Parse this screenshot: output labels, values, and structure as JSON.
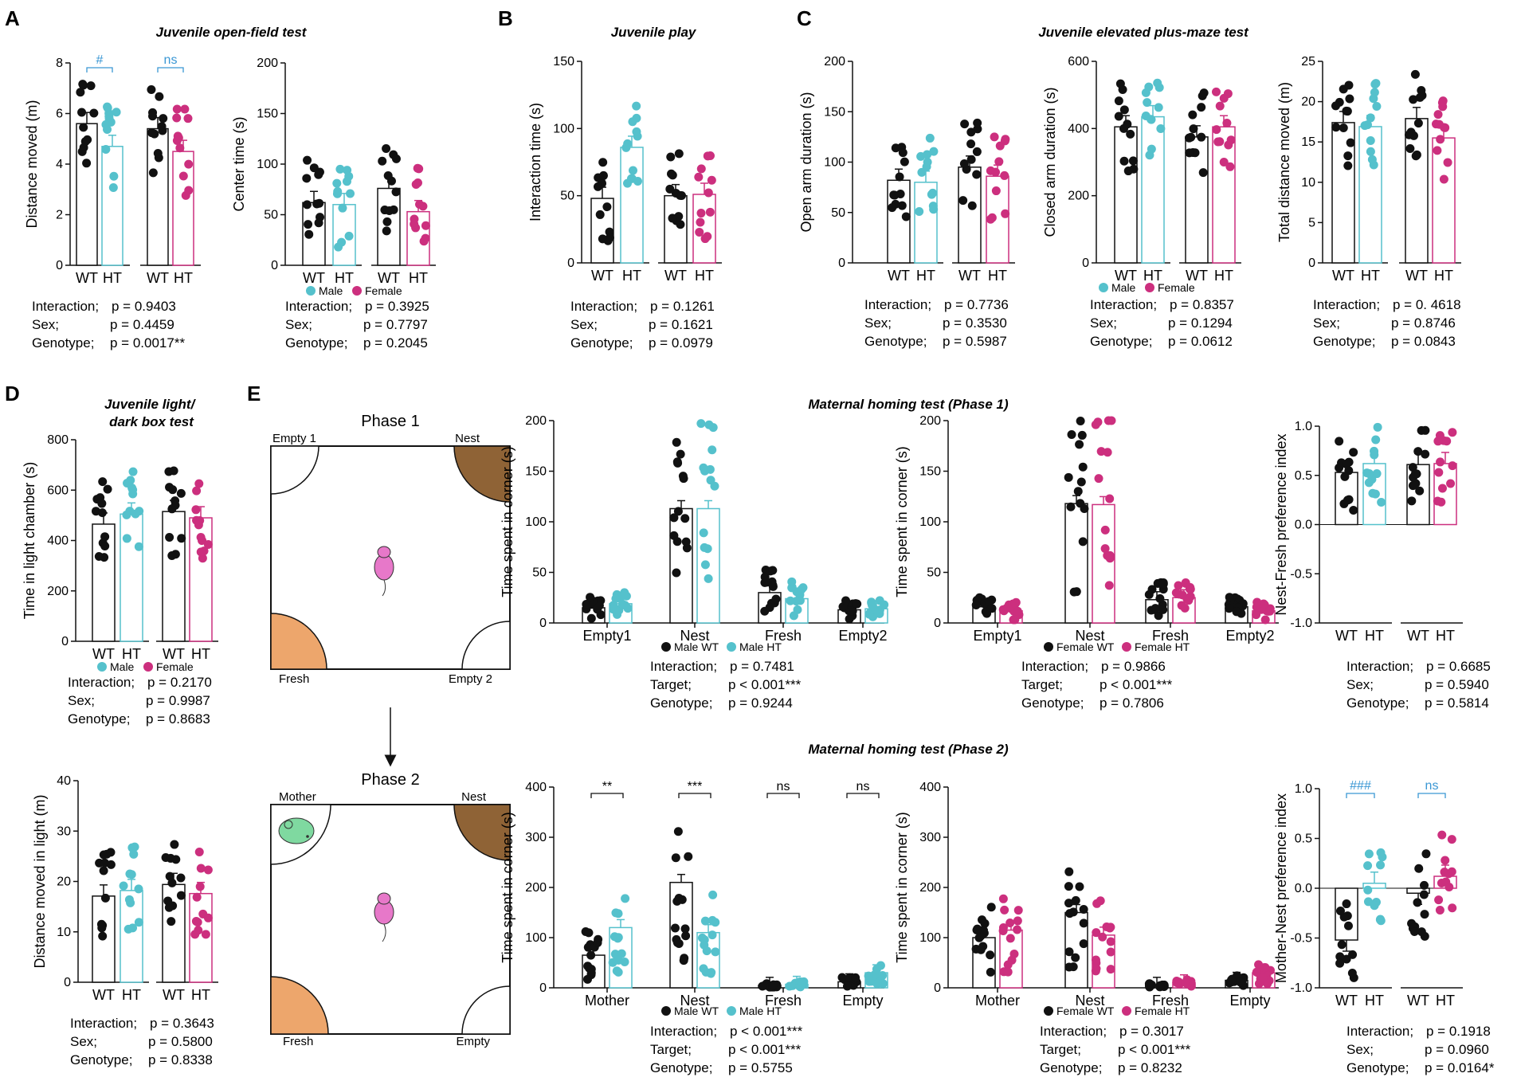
{
  "colors": {
    "wt": "#111111",
    "male_ht": "#55c1cc",
    "female_ht": "#cc2f7e",
    "sig_line": "#3a97d4",
    "nest": "#8f6336",
    "fresh": "#eda66c",
    "mother": "#7fd9a0",
    "pup": "#e778c9"
  },
  "panel_letters": [
    "A",
    "B",
    "C",
    "D",
    "E"
  ],
  "titles": {
    "A": "Juvenile open-field test",
    "B": "Juvenile play",
    "C": "Juvenile elevated plus-maze test",
    "D": "Juvenile light/\ndark box test",
    "E1": "Maternal homing test (Phase 1)",
    "E2": "Maternal homing test (Phase 2)"
  },
  "legend": {
    "male": "Male",
    "female": "Female",
    "male_wt": "Male WT",
    "male_ht": "Male HT",
    "female_wt": "Female WT",
    "female_ht": "Female HT"
  },
  "arena": {
    "phase1": {
      "title": "Phase 1",
      "top_left": "Empty 1",
      "top_right": "Nest",
      "bottom_left": "Fresh",
      "bottom_right": "Empty 2"
    },
    "phase2": {
      "title": "Phase 2",
      "top_left": "Mother",
      "top_right": "Nest",
      "bottom_left": "Fresh",
      "bottom_right": "Empty"
    }
  },
  "chart_data": [
    {
      "id": "A1",
      "type": "bar",
      "ylabel": "Distance moved (m)",
      "ylim": [
        0,
        8
      ],
      "yticks": [
        0,
        2,
        4,
        6,
        8
      ],
      "categories": [
        "WT",
        "HT",
        "WT",
        "HT"
      ],
      "groups": [
        "Male",
        "Male",
        "Female",
        "Female"
      ],
      "values": [
        5.6,
        4.7,
        5.4,
        4.5
      ],
      "brackets": [
        {
          "from": 0,
          "to": 1,
          "label": "#"
        },
        {
          "from": 2,
          "to": 3,
          "label": "ns"
        }
      ],
      "stats": [
        [
          "Interaction;",
          "p = 0.9403"
        ],
        [
          "Sex;",
          "p = 0.4459"
        ],
        [
          "Genotype;",
          "p = 0.0017**"
        ]
      ]
    },
    {
      "id": "A2",
      "type": "bar",
      "ylabel": "Center time (s)",
      "ylim": [
        0,
        200
      ],
      "yticks": [
        0,
        50,
        100,
        150,
        200
      ],
      "categories": [
        "WT",
        "HT",
        "WT",
        "HT"
      ],
      "groups": [
        "Male",
        "Male",
        "Female",
        "Female"
      ],
      "values": [
        62,
        60,
        76,
        53
      ],
      "stats": [
        [
          "Interaction;",
          "p = 0.3925"
        ],
        [
          "Sex;",
          "p = 0.7797"
        ],
        [
          "Genotype;",
          "p = 0.2045"
        ]
      ]
    },
    {
      "id": "B1",
      "type": "bar",
      "ylabel": "Interaction time (s)",
      "ylim": [
        0,
        150
      ],
      "yticks": [
        0,
        50,
        100,
        150
      ],
      "categories": [
        "WT",
        "HT",
        "WT",
        "HT"
      ],
      "groups": [
        "Male",
        "Male",
        "Female",
        "Female"
      ],
      "values": [
        48,
        86,
        50,
        51
      ],
      "stats": [
        [
          "Interaction;",
          "p = 0.1261"
        ],
        [
          "Sex;",
          "p = 0.1621"
        ],
        [
          "Genotype;",
          "p = 0.0979"
        ]
      ]
    },
    {
      "id": "C1",
      "type": "bar",
      "ylabel": "Open arm duration (s)",
      "ylim": [
        0,
        200
      ],
      "yticks": [
        0,
        50,
        100,
        150,
        200
      ],
      "categories": [
        "WT",
        "HT",
        "WT",
        "HT"
      ],
      "groups": [
        "Male",
        "Male",
        "Female",
        "Female"
      ],
      "values": [
        82,
        80,
        95,
        86
      ],
      "stats": [
        [
          "Interaction;",
          "p = 0.7736"
        ],
        [
          "Sex;",
          "p = 0.3530"
        ],
        [
          "Genotype;",
          "p = 0.5987"
        ]
      ]
    },
    {
      "id": "C2",
      "type": "bar",
      "ylabel": "Closed arm duration (s)",
      "ylim": [
        0,
        600
      ],
      "yticks": [
        0,
        200,
        400,
        600
      ],
      "categories": [
        "WT",
        "HT",
        "WT",
        "HT"
      ],
      "groups": [
        "Male",
        "Male",
        "Female",
        "Female"
      ],
      "values": [
        405,
        435,
        375,
        405
      ],
      "stats": [
        [
          "Interaction;",
          "p = 0.8357"
        ],
        [
          "Sex;",
          "p = 0.1294"
        ],
        [
          "Genotype;",
          "p = 0.0612"
        ]
      ]
    },
    {
      "id": "C3",
      "type": "bar",
      "ylabel": "Total distance moved (m)",
      "ylim": [
        0,
        25
      ],
      "yticks": [
        0,
        5,
        10,
        15,
        20,
        25
      ],
      "categories": [
        "WT",
        "HT",
        "WT",
        "HT"
      ],
      "groups": [
        "Male",
        "Male",
        "Female",
        "Female"
      ],
      "values": [
        17.4,
        16.9,
        17.9,
        15.5
      ],
      "stats": [
        [
          "Interaction;",
          "p = 0. 4618"
        ],
        [
          "Sex;",
          "p = 0.8746"
        ],
        [
          "Genotype;",
          "p = 0.0843"
        ]
      ]
    },
    {
      "id": "D1",
      "type": "bar",
      "ylabel": "Time in light chamber (s)",
      "ylim": [
        0,
        800
      ],
      "yticks": [
        0,
        200,
        400,
        600,
        800
      ],
      "categories": [
        "WT",
        "HT",
        "WT",
        "HT"
      ],
      "groups": [
        "Male",
        "Male",
        "Female",
        "Female"
      ],
      "values": [
        465,
        505,
        515,
        490
      ],
      "stats": [
        [
          "Interaction;",
          "p = 0.2170"
        ],
        [
          "Sex;",
          "p = 0.9987"
        ],
        [
          "Genotype;",
          "p = 0.8683"
        ]
      ]
    },
    {
      "id": "D2",
      "type": "bar",
      "ylabel": "Distance moved in light (m)",
      "ylim": [
        0,
        40
      ],
      "yticks": [
        0,
        10,
        20,
        30,
        40
      ],
      "categories": [
        "WT",
        "HT",
        "WT",
        "HT"
      ],
      "groups": [
        "Male",
        "Male",
        "Female",
        "Female"
      ],
      "values": [
        17.1,
        18.2,
        19.4,
        17.6
      ],
      "stats": [
        [
          "Interaction;",
          "p = 0.3643"
        ],
        [
          "Sex;",
          "p = 0.5800"
        ],
        [
          "Genotype;",
          "p = 0.8338"
        ]
      ]
    },
    {
      "id": "E1a",
      "type": "bar",
      "ylabel": "Time spent in corner (s)",
      "ylim": [
        0,
        200
      ],
      "yticks": [
        0,
        50,
        100,
        150,
        200
      ],
      "categories": [
        "Empty1",
        "Nest",
        "Fresh",
        "Empty2"
      ],
      "series": [
        {
          "name": "Male WT",
          "values": [
            15,
            113,
            30,
            13
          ]
        },
        {
          "name": "Male HT",
          "values": [
            19,
            113,
            24,
            14
          ]
        }
      ],
      "stats": [
        [
          "Interaction;",
          "p = 0.7481"
        ],
        [
          "Target;",
          "p < 0.001***"
        ],
        [
          "Genotype;",
          "p = 0.9244"
        ]
      ]
    },
    {
      "id": "E1b",
      "type": "bar",
      "ylabel": "Time spent in corner (s)",
      "ylim": [
        0,
        200
      ],
      "yticks": [
        0,
        50,
        100,
        150,
        200
      ],
      "categories": [
        "Empty1",
        "Nest",
        "Fresh",
        "Empty2"
      ],
      "series": [
        {
          "name": "Female WT",
          "values": [
            16,
            118,
            23,
            16
          ]
        },
        {
          "name": "Female HT",
          "values": [
            12,
            117,
            25,
            12
          ]
        }
      ],
      "stats": [
        [
          "Interaction;",
          "p = 0.9866"
        ],
        [
          "Target;",
          "p < 0.001***"
        ],
        [
          "Genotype;",
          "p = 0.7806"
        ]
      ]
    },
    {
      "id": "E1c",
      "type": "bar",
      "ylabel": "Nest-Fresh preference index",
      "ylim": [
        -1,
        1
      ],
      "yticks": [
        -1.0,
        -0.5,
        0.0,
        0.5,
        1.0
      ],
      "categories": [
        "WT",
        "HT",
        "WT",
        "HT"
      ],
      "groups": [
        "Male",
        "Male",
        "Female",
        "Female"
      ],
      "values": [
        0.53,
        0.62,
        0.61,
        0.62
      ],
      "stats": [
        [
          "Interaction;",
          "p = 0.6685"
        ],
        [
          "Sex;",
          "p = 0.5940"
        ],
        [
          "Genotype;",
          "p = 0.5814"
        ]
      ]
    },
    {
      "id": "E2a",
      "type": "bar",
      "ylabel": "Time spent in corner (s)",
      "ylim": [
        0,
        400
      ],
      "yticks": [
        0,
        100,
        200,
        300,
        400
      ],
      "categories": [
        "Mother",
        "Nest",
        "Fresh",
        "Empty"
      ],
      "series": [
        {
          "name": "Male WT",
          "values": [
            65,
            210,
            5,
            12
          ]
        },
        {
          "name": "Male HT",
          "values": [
            120,
            110,
            7,
            30
          ]
        }
      ],
      "brackets": [
        {
          "group": 0,
          "label": "**"
        },
        {
          "group": 1,
          "label": "***"
        },
        {
          "group": 2,
          "label": "ns"
        },
        {
          "group": 3,
          "label": "ns"
        }
      ],
      "stats": [
        [
          "Interaction;",
          "p < 0.001***"
        ],
        [
          "Target;",
          "p < 0.001***"
        ],
        [
          "Genotype;",
          "p = 0.5755"
        ]
      ]
    },
    {
      "id": "E2b",
      "type": "bar",
      "ylabel": "Time spent in corner (s)",
      "ylim": [
        0,
        400
      ],
      "yticks": [
        0,
        100,
        200,
        300,
        400
      ],
      "categories": [
        "Mother",
        "Nest",
        "Fresh",
        "Empty"
      ],
      "series": [
        {
          "name": "Female WT",
          "values": [
            100,
            150,
            5,
            15
          ]
        },
        {
          "name": "Female HT",
          "values": [
            115,
            105,
            10,
            30
          ]
        }
      ],
      "stats": [
        [
          "Interaction;",
          "p = 0.3017"
        ],
        [
          "Target;",
          "p < 0.001***"
        ],
        [
          "Genotype;",
          "p = 0.8232"
        ]
      ]
    },
    {
      "id": "E2c",
      "type": "bar",
      "ylabel": "Mother-Nest preference index",
      "ylim": [
        -1,
        1
      ],
      "yticks": [
        -1.0,
        -0.5,
        0.0,
        0.5,
        1.0
      ],
      "categories": [
        "WT",
        "HT",
        "WT",
        "HT"
      ],
      "groups": [
        "Male",
        "Male",
        "Female",
        "Female"
      ],
      "values": [
        -0.52,
        0.05,
        -0.05,
        0.12
      ],
      "brackets": [
        {
          "from": 0,
          "to": 1,
          "label": "###"
        },
        {
          "from": 2,
          "to": 3,
          "label": "ns"
        }
      ],
      "stats": [
        [
          "Interaction;",
          "p = 0.1918"
        ],
        [
          "Sex;",
          "p = 0.0960"
        ],
        [
          "Genotype;",
          "p = 0.0164*"
        ]
      ]
    }
  ]
}
